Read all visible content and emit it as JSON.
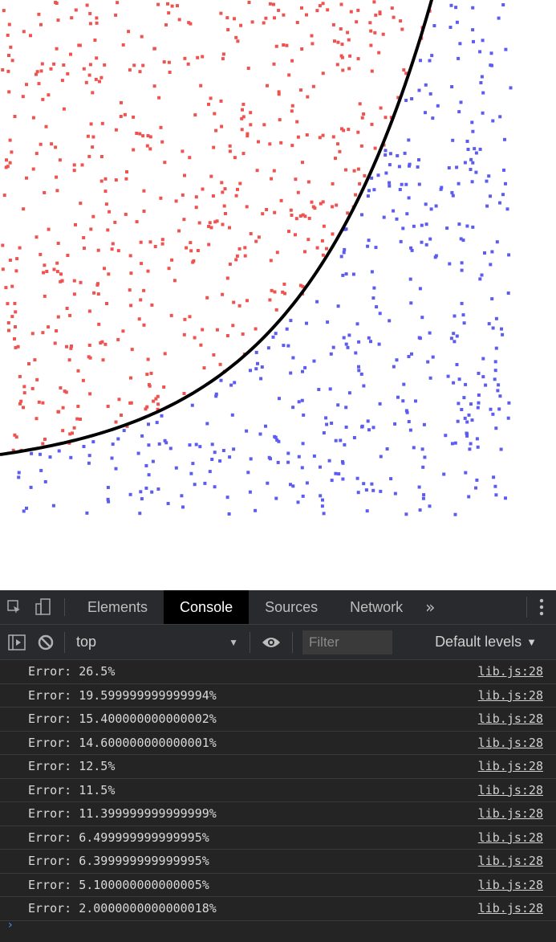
{
  "plot": {
    "colors": {
      "class_a": "#ef5350",
      "class_b": "#5c5cf0",
      "boundary": "#000000"
    }
  },
  "devtools": {
    "tabs": [
      "Elements",
      "Console",
      "Sources",
      "Network"
    ],
    "active_tab": "Console",
    "more_tabs_symbol": "»",
    "context_value": "top",
    "filter_placeholder": "Filter",
    "levels_label": "Default levels",
    "icons": {
      "inspect": "inspect-element-icon",
      "device": "device-toolbar-icon",
      "sidebar": "show-sidebar-icon",
      "clear": "clear-console-icon",
      "eye": "live-expression-icon",
      "menu": "kebab-menu-icon"
    }
  },
  "console": {
    "messages": [
      {
        "text": "Error: 26.5%",
        "source": "lib.js:28"
      },
      {
        "text": "Error: 19.599999999999994%",
        "source": "lib.js:28"
      },
      {
        "text": "Error: 15.400000000000002%",
        "source": "lib.js:28"
      },
      {
        "text": "Error: 14.600000000000001%",
        "source": "lib.js:28"
      },
      {
        "text": "Error: 12.5%",
        "source": "lib.js:28"
      },
      {
        "text": "Error: 11.5%",
        "source": "lib.js:28"
      },
      {
        "text": "Error: 11.399999999999999%",
        "source": "lib.js:28"
      },
      {
        "text": "Error: 6.499999999999995%",
        "source": "lib.js:28"
      },
      {
        "text": "Error: 6.399999999999995%",
        "source": "lib.js:28"
      },
      {
        "text": "Error: 5.100000000000005%",
        "source": "lib.js:28"
      },
      {
        "text": "Error: 2.0000000000000018%",
        "source": "lib.js:28"
      }
    ],
    "prompt_symbol": "›"
  }
}
